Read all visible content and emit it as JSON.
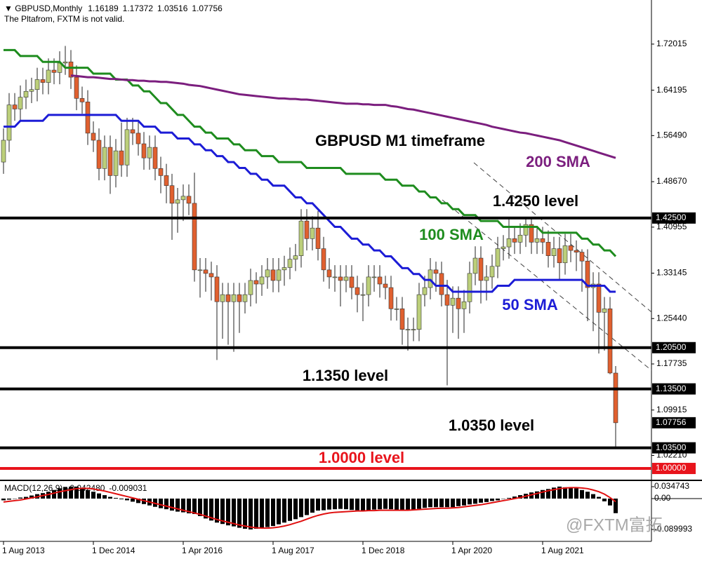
{
  "chart_data": {
    "type": "candlestick",
    "symbol": "GBPUSD,Monthly",
    "note": "The Pltafrom, FXTM is not valid.",
    "title": "GBPUSD M1 timeframe",
    "watermark": "@FXTM富拓",
    "categories": [
      "1 Aug 2013",
      null,
      null,
      null,
      null,
      null,
      null,
      null,
      null,
      null,
      null,
      null,
      null,
      null,
      null,
      null,
      "1 Dec 2014",
      null,
      null,
      null,
      null,
      null,
      null,
      null,
      null,
      null,
      null,
      null,
      null,
      null,
      null,
      null,
      "1 Apr 2016",
      null,
      null,
      null,
      null,
      null,
      null,
      null,
      null,
      null,
      null,
      null,
      null,
      null,
      null,
      null,
      "1 Aug 2017",
      null,
      null,
      null,
      null,
      null,
      null,
      null,
      null,
      null,
      null,
      null,
      null,
      null,
      null,
      null,
      "1 Dec 2018",
      null,
      null,
      null,
      null,
      null,
      null,
      null,
      null,
      null,
      null,
      null,
      null,
      null,
      null,
      null,
      "1 Apr 2020",
      null,
      null,
      null,
      null,
      null,
      null,
      null,
      null,
      null,
      null,
      null,
      null,
      null,
      null,
      null,
      "1 Aug 2021",
      null,
      null,
      null,
      null,
      null,
      null,
      null,
      null,
      null,
      null,
      null,
      null,
      null
    ],
    "open": [
      1.52,
      1.557,
      1.617,
      1.61,
      1.63,
      1.64,
      1.643,
      1.66,
      1.655,
      1.676,
      1.672,
      1.688,
      1.69,
      1.664,
      1.628,
      1.622,
      1.569,
      1.557,
      1.509,
      1.545,
      1.497,
      1.539,
      1.515,
      1.575,
      1.569,
      1.551,
      1.527,
      1.545,
      1.509,
      1.497,
      1.48,
      1.45,
      1.456,
      1.462,
      1.45,
      1.337,
      1.337,
      1.331,
      1.325,
      1.283,
      1.295,
      1.283,
      1.295,
      1.283,
      1.295,
      1.319,
      1.313,
      1.325,
      1.337,
      1.319,
      1.337,
      1.341,
      1.355,
      1.361,
      1.42,
      1.39,
      1.408,
      1.373,
      1.337,
      1.325,
      1.325,
      1.319,
      1.325,
      1.307,
      1.295,
      1.295,
      1.325,
      1.325,
      1.313,
      1.307,
      1.271,
      1.271,
      1.236,
      1.236,
      1.236,
      1.295,
      1.307,
      1.337,
      1.331,
      1.295,
      1.277,
      1.289,
      1.271,
      1.283,
      1.331,
      1.357,
      1.319,
      1.325,
      1.343,
      1.373,
      1.376,
      1.39,
      1.384,
      1.396,
      1.414,
      1.384,
      1.39,
      1.384,
      1.361,
      1.373,
      1.349,
      1.378,
      1.37,
      1.367,
      1.352,
      1.307,
      1.313,
      1.265,
      1.271,
      1.16189
    ],
    "high": [
      1.577,
      1.637,
      1.637,
      1.65,
      1.66,
      1.663,
      1.68,
      1.68,
      1.696,
      1.696,
      1.708,
      1.717,
      1.71,
      1.684,
      1.648,
      1.642,
      1.589,
      1.577,
      1.565,
      1.565,
      1.559,
      1.587,
      1.595,
      1.595,
      1.589,
      1.571,
      1.565,
      1.565,
      1.529,
      1.517,
      1.5,
      1.476,
      1.482,
      1.482,
      1.502,
      1.357,
      1.357,
      1.351,
      1.345,
      1.315,
      1.315,
      1.315,
      1.315,
      1.315,
      1.339,
      1.333,
      1.345,
      1.357,
      1.357,
      1.357,
      1.361,
      1.375,
      1.381,
      1.44,
      1.44,
      1.428,
      1.437,
      1.393,
      1.357,
      1.345,
      1.345,
      1.345,
      1.345,
      1.327,
      1.315,
      1.345,
      1.345,
      1.345,
      1.327,
      1.327,
      1.291,
      1.291,
      1.256,
      1.256,
      1.315,
      1.327,
      1.357,
      1.351,
      1.351,
      1.32,
      1.309,
      1.309,
      1.303,
      1.351,
      1.377,
      1.377,
      1.345,
      1.363,
      1.393,
      1.396,
      1.424,
      1.41,
      1.416,
      1.425,
      1.425,
      1.41,
      1.41,
      1.404,
      1.393,
      1.393,
      1.398,
      1.398,
      1.387,
      1.372,
      1.372,
      1.333,
      1.333,
      1.291,
      1.291,
      1.17372
    ],
    "low": [
      1.5,
      1.537,
      1.59,
      1.59,
      1.61,
      1.62,
      1.623,
      1.635,
      1.635,
      1.652,
      1.652,
      1.668,
      1.644,
      1.608,
      1.602,
      1.549,
      1.537,
      1.489,
      1.489,
      1.466,
      1.477,
      1.495,
      1.495,
      1.549,
      1.531,
      1.507,
      1.507,
      1.489,
      1.467,
      1.45,
      1.388,
      1.4,
      1.42,
      1.43,
      1.317,
      1.29,
      1.3,
      1.285,
      1.184,
      1.22,
      1.21,
      1.198,
      1.23,
      1.263,
      1.275,
      1.28,
      1.293,
      1.305,
      1.299,
      1.299,
      1.31,
      1.321,
      1.335,
      1.341,
      1.37,
      1.37,
      1.353,
      1.317,
      1.305,
      1.3,
      1.275,
      1.299,
      1.287,
      1.265,
      1.25,
      1.275,
      1.3,
      1.29,
      1.287,
      1.251,
      1.251,
      1.21,
      1.2,
      1.216,
      1.216,
      1.275,
      1.287,
      1.3,
      1.275,
      1.141,
      1.23,
      1.22,
      1.23,
      1.263,
      1.311,
      1.28,
      1.285,
      1.305,
      1.323,
      1.353,
      1.356,
      1.364,
      1.364,
      1.376,
      1.364,
      1.364,
      1.364,
      1.341,
      1.341,
      1.32,
      1.329,
      1.35,
      1.335,
      1.3,
      1.25,
      1.233,
      1.195,
      1.2,
      1.16,
      1.03516
    ],
    "close": [
      1.557,
      1.617,
      1.61,
      1.63,
      1.64,
      1.643,
      1.66,
      1.655,
      1.676,
      1.672,
      1.688,
      1.69,
      1.664,
      1.628,
      1.622,
      1.569,
      1.557,
      1.509,
      1.545,
      1.497,
      1.539,
      1.515,
      1.575,
      1.569,
      1.551,
      1.527,
      1.545,
      1.509,
      1.497,
      1.48,
      1.45,
      1.456,
      1.462,
      1.45,
      1.337,
      1.337,
      1.331,
      1.325,
      1.283,
      1.295,
      1.283,
      1.295,
      1.283,
      1.295,
      1.319,
      1.313,
      1.325,
      1.337,
      1.319,
      1.337,
      1.341,
      1.355,
      1.361,
      1.42,
      1.39,
      1.408,
      1.373,
      1.337,
      1.325,
      1.325,
      1.319,
      1.325,
      1.307,
      1.295,
      1.295,
      1.325,
      1.325,
      1.313,
      1.307,
      1.271,
      1.271,
      1.236,
      1.236,
      1.236,
      1.295,
      1.307,
      1.337,
      1.331,
      1.295,
      1.277,
      1.289,
      1.271,
      1.283,
      1.331,
      1.357,
      1.319,
      1.325,
      1.343,
      1.373,
      1.376,
      1.39,
      1.384,
      1.396,
      1.414,
      1.384,
      1.39,
      1.384,
      1.361,
      1.373,
      1.349,
      1.378,
      1.37,
      1.367,
      1.352,
      1.307,
      1.313,
      1.265,
      1.271,
      1.162,
      1.07756
    ],
    "up_color": "#bccf7a",
    "down_color": "#e0602f",
    "ylim": [
      0.981,
      1.795
    ],
    "yticks": [
      1.72015,
      1.64195,
      {
        "value": 1.5649,
        "label": "1.56490"
      },
      {
        "value": 1.4867,
        "label": "1.48670"
      },
      1.40955,
      1.33145,
      {
        "value": 1.2544,
        "label": "1.25440"
      },
      1.17735,
      1.09915,
      {
        "value": 1.0221,
        "label": "1.02210"
      }
    ],
    "series": [
      {
        "name": "50 SMA",
        "color": "#1c1cd6",
        "values": [
          1.58,
          1.58,
          1.58,
          1.59,
          1.59,
          1.59,
          1.59,
          1.59,
          1.6,
          1.6,
          1.6,
          1.6,
          1.6,
          1.6,
          1.6,
          1.6,
          1.6,
          1.6,
          1.6,
          1.6,
          1.6,
          1.59,
          1.59,
          1.59,
          1.59,
          1.58,
          1.58,
          1.58,
          1.57,
          1.57,
          1.57,
          1.56,
          1.56,
          1.56,
          1.55,
          1.55,
          1.54,
          1.54,
          1.53,
          1.53,
          1.52,
          1.52,
          1.51,
          1.51,
          1.5,
          1.5,
          1.49,
          1.49,
          1.48,
          1.48,
          1.48,
          1.47,
          1.46,
          1.46,
          1.45,
          1.45,
          1.44,
          1.43,
          1.42,
          1.41,
          1.41,
          1.4,
          1.39,
          1.39,
          1.38,
          1.38,
          1.37,
          1.37,
          1.36,
          1.36,
          1.35,
          1.34,
          1.34,
          1.33,
          1.33,
          1.32,
          1.32,
          1.31,
          1.31,
          1.31,
          1.3,
          1.3,
          1.3,
          1.3,
          1.3,
          1.3,
          1.3,
          1.3,
          1.31,
          1.31,
          1.31,
          1.32,
          1.32,
          1.32,
          1.32,
          1.32,
          1.32,
          1.32,
          1.32,
          1.32,
          1.32,
          1.32,
          1.32,
          1.32,
          1.31,
          1.31,
          1.31,
          1.31,
          1.3,
          1.3
        ]
      },
      {
        "name": "100 SMA",
        "color": "#1e8c1e",
        "values": [
          1.71,
          1.71,
          1.71,
          1.7,
          1.7,
          1.7,
          1.7,
          1.69,
          1.69,
          1.69,
          1.69,
          1.68,
          1.68,
          1.68,
          1.68,
          1.68,
          1.67,
          1.67,
          1.67,
          1.67,
          1.66,
          1.66,
          1.66,
          1.65,
          1.65,
          1.64,
          1.64,
          1.63,
          1.62,
          1.62,
          1.61,
          1.6,
          1.6,
          1.59,
          1.58,
          1.58,
          1.57,
          1.57,
          1.56,
          1.56,
          1.56,
          1.55,
          1.55,
          1.54,
          1.54,
          1.54,
          1.53,
          1.53,
          1.53,
          1.52,
          1.52,
          1.52,
          1.52,
          1.52,
          1.51,
          1.51,
          1.51,
          1.51,
          1.51,
          1.51,
          1.51,
          1.5,
          1.5,
          1.5,
          1.5,
          1.5,
          1.5,
          1.5,
          1.49,
          1.49,
          1.49,
          1.48,
          1.48,
          1.48,
          1.47,
          1.47,
          1.46,
          1.46,
          1.45,
          1.45,
          1.44,
          1.44,
          1.43,
          1.43,
          1.43,
          1.42,
          1.42,
          1.42,
          1.42,
          1.41,
          1.41,
          1.41,
          1.41,
          1.41,
          1.41,
          1.41,
          1.4,
          1.4,
          1.4,
          1.4,
          1.4,
          1.4,
          1.4,
          1.39,
          1.39,
          1.38,
          1.38,
          1.37,
          1.37,
          1.36
        ]
      },
      {
        "name": "200 SMA",
        "color": "#7b1e7e",
        "values": [
          null,
          null,
          null,
          null,
          null,
          null,
          null,
          null,
          null,
          null,
          null,
          null,
          1.667,
          1.666,
          1.665,
          1.664,
          1.664,
          1.663,
          1.662,
          1.661,
          1.661,
          1.66,
          1.659,
          1.659,
          1.658,
          1.658,
          1.657,
          1.657,
          1.656,
          1.656,
          1.655,
          1.654,
          1.653,
          1.651,
          1.65,
          1.649,
          1.647,
          1.645,
          1.643,
          1.641,
          1.639,
          1.637,
          1.635,
          1.634,
          1.633,
          1.632,
          1.631,
          1.63,
          1.629,
          1.628,
          1.628,
          1.627,
          1.627,
          1.626,
          1.626,
          1.625,
          1.624,
          1.623,
          1.622,
          1.621,
          1.62,
          1.619,
          1.619,
          1.619,
          1.618,
          1.618,
          1.617,
          1.617,
          1.617,
          1.615,
          1.614,
          1.612,
          1.61,
          1.609,
          1.607,
          1.605,
          1.603,
          1.601,
          1.599,
          1.597,
          1.595,
          1.593,
          1.591,
          1.589,
          1.587,
          1.585,
          1.583,
          1.58,
          1.578,
          1.576,
          1.574,
          1.572,
          1.57,
          1.569,
          1.567,
          1.565,
          1.563,
          1.561,
          1.559,
          1.557,
          1.554,
          1.551,
          1.548,
          1.545,
          1.542,
          1.539,
          1.536,
          1.533,
          1.53,
          1.527
        ]
      }
    ],
    "levels": [
      {
        "value": 1.425,
        "label": "1.42500",
        "name": "1.4250 level",
        "color": "#000000"
      },
      {
        "value": 1.205,
        "label": "1.20500",
        "color": "#000000"
      },
      {
        "value": 1.135,
        "label": "1.13500",
        "name": "1.1350 level",
        "color": "#000000"
      },
      {
        "value": 1.035,
        "label": "1.03500",
        "name": "1.0350 level",
        "color": "#000000"
      },
      {
        "value": 1.0,
        "label": "1.00000",
        "name": "1.0000 level",
        "color": "#e8141c"
      }
    ],
    "macd": {
      "label": "MACD(12,26,9)",
      "current_labels": [
        "-0.042480",
        "-0.009031"
      ],
      "ylim": [
        -0.1247,
        0.0511
      ],
      "yticks": [
        0.034743,
        {
          "value": 0,
          "label": "0.00"
        },
        -0.089993
      ],
      "histogram_color": "#000000",
      "signal_color": "#e01010",
      "histogram": [
        -0.005,
        -0.003,
        0.0,
        0.003,
        0.005,
        0.009,
        0.013,
        0.016,
        0.02,
        0.025,
        0.03,
        0.034,
        0.035,
        0.035,
        0.03,
        0.025,
        0.02,
        0.015,
        0.01,
        0.005,
        0.002,
        -0.002,
        -0.005,
        -0.009,
        -0.013,
        -0.016,
        -0.02,
        -0.024,
        -0.028,
        -0.031,
        -0.035,
        -0.038,
        -0.04,
        -0.043,
        -0.045,
        -0.051,
        -0.058,
        -0.064,
        -0.07,
        -0.074,
        -0.078,
        -0.081,
        -0.085,
        -0.088,
        -0.09,
        -0.088,
        -0.085,
        -0.083,
        -0.08,
        -0.075,
        -0.07,
        -0.065,
        -0.06,
        -0.054,
        -0.048,
        -0.041,
        -0.035,
        -0.034,
        -0.032,
        -0.031,
        -0.03,
        -0.031,
        -0.033,
        -0.034,
        -0.035,
        -0.034,
        -0.032,
        -0.031,
        -0.03,
        -0.031,
        -0.033,
        -0.034,
        -0.035,
        -0.032,
        -0.03,
        -0.027,
        -0.025,
        -0.025,
        -0.025,
        -0.025,
        -0.025,
        -0.022,
        -0.02,
        -0.017,
        -0.015,
        -0.012,
        -0.01,
        -0.007,
        -0.005,
        -0.001,
        0.002,
        0.006,
        0.01,
        0.014,
        0.018,
        0.021,
        0.025,
        0.028,
        0.032,
        0.035,
        0.033,
        0.032,
        0.03,
        0.025,
        0.02,
        0.013,
        0.005,
        -0.008,
        -0.02,
        -0.04248
      ],
      "signal": [
        -0.01,
        -0.008,
        -0.006,
        -0.004,
        -0.001,
        0.002,
        0.005,
        0.009,
        0.012,
        0.016,
        0.02,
        0.023,
        0.026,
        0.029,
        0.03,
        0.03,
        0.028,
        0.025,
        0.022,
        0.018,
        0.014,
        0.01,
        0.006,
        0.002,
        -0.002,
        -0.006,
        -0.01,
        -0.014,
        -0.018,
        -0.022,
        -0.026,
        -0.03,
        -0.034,
        -0.038,
        -0.042,
        -0.046,
        -0.051,
        -0.056,
        -0.061,
        -0.065,
        -0.069,
        -0.073,
        -0.077,
        -0.08,
        -0.083,
        -0.085,
        -0.086,
        -0.086,
        -0.085,
        -0.083,
        -0.08,
        -0.076,
        -0.071,
        -0.066,
        -0.06,
        -0.054,
        -0.049,
        -0.045,
        -0.042,
        -0.04,
        -0.039,
        -0.038,
        -0.037,
        -0.036,
        -0.036,
        -0.035,
        -0.035,
        -0.034,
        -0.034,
        -0.034,
        -0.034,
        -0.034,
        -0.034,
        -0.033,
        -0.032,
        -0.031,
        -0.03,
        -0.029,
        -0.028,
        -0.028,
        -0.027,
        -0.026,
        -0.024,
        -0.022,
        -0.02,
        -0.018,
        -0.015,
        -0.012,
        -0.009,
        -0.006,
        -0.003,
        0.0,
        0.003,
        0.007,
        0.011,
        0.015,
        0.019,
        0.023,
        0.026,
        0.029,
        0.031,
        0.032,
        0.032,
        0.031,
        0.029,
        0.025,
        0.02,
        0.013,
        0.003,
        -0.009031
      ]
    }
  }
}
